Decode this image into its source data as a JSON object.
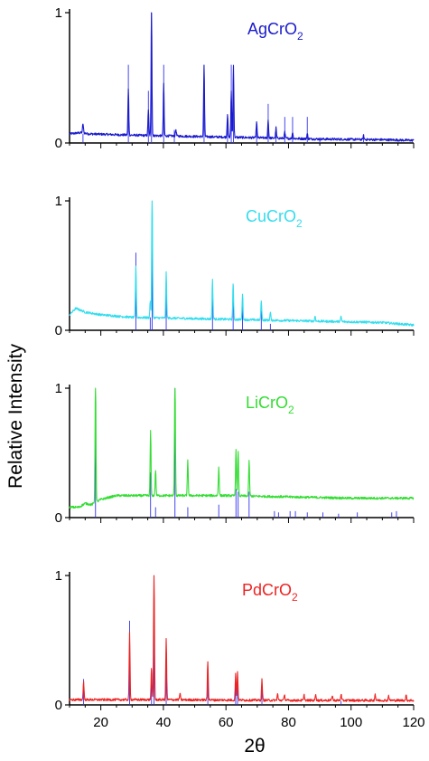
{
  "figure": {
    "ylabel": "Relative Intensity",
    "xlabel": "2θ",
    "xlim": [
      10,
      120
    ],
    "xticks": [
      20,
      40,
      60,
      80,
      100,
      120
    ],
    "reference_color": "#3333ee"
  },
  "chart_data": [
    {
      "type": "line",
      "title": "AgCrO2",
      "title_main": "AgCrO",
      "title_sub": "2",
      "color": "#1a1acc",
      "xlim": [
        10,
        120
      ],
      "ylim": [
        0,
        1
      ],
      "yticks": [
        0,
        1
      ],
      "baseline": [
        [
          10,
          0.07
        ],
        [
          14,
          0.08
        ],
        [
          16,
          0.07
        ],
        [
          30,
          0.06
        ],
        [
          50,
          0.05
        ],
        [
          70,
          0.04
        ],
        [
          90,
          0.03
        ],
        [
          110,
          0.025
        ],
        [
          120,
          0.02
        ]
      ],
      "peaks": [
        [
          14.3,
          0.07
        ],
        [
          28.8,
          0.35
        ],
        [
          35.2,
          0.2
        ],
        [
          36.2,
          0.98
        ],
        [
          40.1,
          0.4
        ],
        [
          44,
          0.05
        ],
        [
          53,
          0.55
        ],
        [
          60.5,
          0.18
        ],
        [
          61.7,
          0.35
        ],
        [
          62.4,
          0.55
        ],
        [
          69.8,
          0.12
        ],
        [
          73.5,
          0.14
        ],
        [
          76,
          0.08
        ],
        [
          78.8,
          0.05
        ],
        [
          81.3,
          0.05
        ],
        [
          86,
          0.04
        ],
        [
          104,
          0.03
        ]
      ],
      "reference": [
        [
          14.3,
          0.07
        ],
        [
          28.8,
          0.6
        ],
        [
          35.2,
          0.4
        ],
        [
          36.2,
          1.0
        ],
        [
          40.1,
          0.6
        ],
        [
          43.5,
          0.1
        ],
        [
          53,
          0.6
        ],
        [
          60.5,
          0.2
        ],
        [
          61.7,
          0.6
        ],
        [
          62.4,
          0.6
        ],
        [
          69.8,
          0.15
        ],
        [
          73.5,
          0.3
        ],
        [
          76,
          0.12
        ],
        [
          78.8,
          0.2
        ],
        [
          81.3,
          0.2
        ],
        [
          86,
          0.2
        ],
        [
          90,
          0.04
        ],
        [
          104,
          0.05
        ]
      ]
    },
    {
      "type": "line",
      "title": "CuCrO2",
      "title_main": "CuCrO",
      "title_sub": "2",
      "color": "#33ddee",
      "xlim": [
        10,
        120
      ],
      "ylim": [
        0,
        1
      ],
      "yticks": [
        0,
        1
      ],
      "baseline": [
        [
          10,
          0.12
        ],
        [
          12,
          0.17
        ],
        [
          15,
          0.14
        ],
        [
          20,
          0.12
        ],
        [
          30,
          0.1
        ],
        [
          50,
          0.09
        ],
        [
          70,
          0.08
        ],
        [
          90,
          0.07
        ],
        [
          110,
          0.06
        ],
        [
          120,
          0.04
        ]
      ],
      "peaks": [
        [
          31.2,
          0.4
        ],
        [
          35.8,
          0.13
        ],
        [
          36.4,
          1.0
        ],
        [
          40.9,
          0.35
        ],
        [
          55.7,
          0.3
        ],
        [
          62.3,
          0.28
        ],
        [
          65.3,
          0.2
        ],
        [
          71.3,
          0.15
        ],
        [
          74.2,
          0.06
        ],
        [
          88.5,
          0.04
        ],
        [
          96.8,
          0.04
        ]
      ],
      "reference": [
        [
          31.2,
          0.6
        ],
        [
          35.8,
          0.1
        ],
        [
          36.4,
          1.0
        ],
        [
          40.9,
          0.4
        ],
        [
          55.7,
          0.28
        ],
        [
          62.3,
          0.35
        ],
        [
          65.3,
          0.22
        ],
        [
          71.3,
          0.15
        ],
        [
          74.2,
          0.05
        ]
      ]
    },
    {
      "type": "line",
      "title": "LiCrO2",
      "title_main": "LiCrO",
      "title_sub": "2",
      "color": "#33dd33",
      "xlim": [
        10,
        120
      ],
      "ylim": [
        0,
        1
      ],
      "yticks": [
        0,
        1
      ],
      "baseline": [
        [
          10,
          0.08
        ],
        [
          13,
          0.08
        ],
        [
          15,
          0.11
        ],
        [
          17,
          0.1
        ],
        [
          20,
          0.14
        ],
        [
          25,
          0.17
        ],
        [
          40,
          0.17
        ],
        [
          60,
          0.17
        ],
        [
          80,
          0.16
        ],
        [
          100,
          0.15
        ],
        [
          120,
          0.15
        ]
      ],
      "peaks": [
        [
          18.3,
          1.0
        ],
        [
          35.9,
          0.5
        ],
        [
          37.5,
          0.2
        ],
        [
          43.7,
          0.95
        ],
        [
          47.8,
          0.27
        ],
        [
          57.7,
          0.22
        ],
        [
          63.2,
          0.35
        ],
        [
          63.9,
          0.35
        ],
        [
          67.4,
          0.27
        ]
      ],
      "reference": [
        [
          18.3,
          0.75
        ],
        [
          35.9,
          0.35
        ],
        [
          37.5,
          0.08
        ],
        [
          43.7,
          1.0
        ],
        [
          47.8,
          0.08
        ],
        [
          57.7,
          0.1
        ],
        [
          63.2,
          0.22
        ],
        [
          63.9,
          0.2
        ],
        [
          67.4,
          0.2
        ],
        [
          75.5,
          0.05
        ],
        [
          76.8,
          0.04
        ],
        [
          80.5,
          0.05
        ],
        [
          82.2,
          0.05
        ],
        [
          86,
          0.04
        ],
        [
          91,
          0.04
        ],
        [
          96,
          0.03
        ],
        [
          102,
          0.04
        ],
        [
          113,
          0.04
        ],
        [
          114.5,
          0.05
        ]
      ]
    },
    {
      "type": "line",
      "title": "PdCrO2",
      "title_main": "PdCrO",
      "title_sub": "2",
      "color": "#ee2222",
      "xlim": [
        10,
        120
      ],
      "ylim": [
        0,
        1
      ],
      "yticks": [
        0,
        1
      ],
      "baseline": [
        [
          10,
          0.04
        ],
        [
          40,
          0.04
        ],
        [
          80,
          0.035
        ],
        [
          120,
          0.035
        ]
      ],
      "peaks": [
        [
          14.5,
          0.14
        ],
        [
          29.2,
          0.52
        ],
        [
          36.2,
          0.25
        ],
        [
          37,
          1.0
        ],
        [
          40.9,
          0.47
        ],
        [
          45.3,
          0.05
        ],
        [
          54.2,
          0.3
        ],
        [
          63.1,
          0.2
        ],
        [
          63.7,
          0.22
        ],
        [
          71.5,
          0.16
        ],
        [
          76.5,
          0.05
        ],
        [
          78.7,
          0.05
        ],
        [
          85,
          0.04
        ],
        [
          88.7,
          0.05
        ],
        [
          94,
          0.04
        ],
        [
          96.8,
          0.05
        ],
        [
          107.7,
          0.05
        ],
        [
          112,
          0.04
        ],
        [
          117.6,
          0.04
        ]
      ],
      "reference": [
        [
          14.5,
          0.2
        ],
        [
          29.2,
          0.65
        ],
        [
          36.2,
          0.27
        ],
        [
          37,
          1.0
        ],
        [
          40.9,
          0.48
        ],
        [
          54.2,
          0.3
        ],
        [
          63.1,
          0.22
        ],
        [
          63.7,
          0.18
        ],
        [
          71.5,
          0.18
        ],
        [
          96.8,
          0.03
        ]
      ]
    }
  ]
}
